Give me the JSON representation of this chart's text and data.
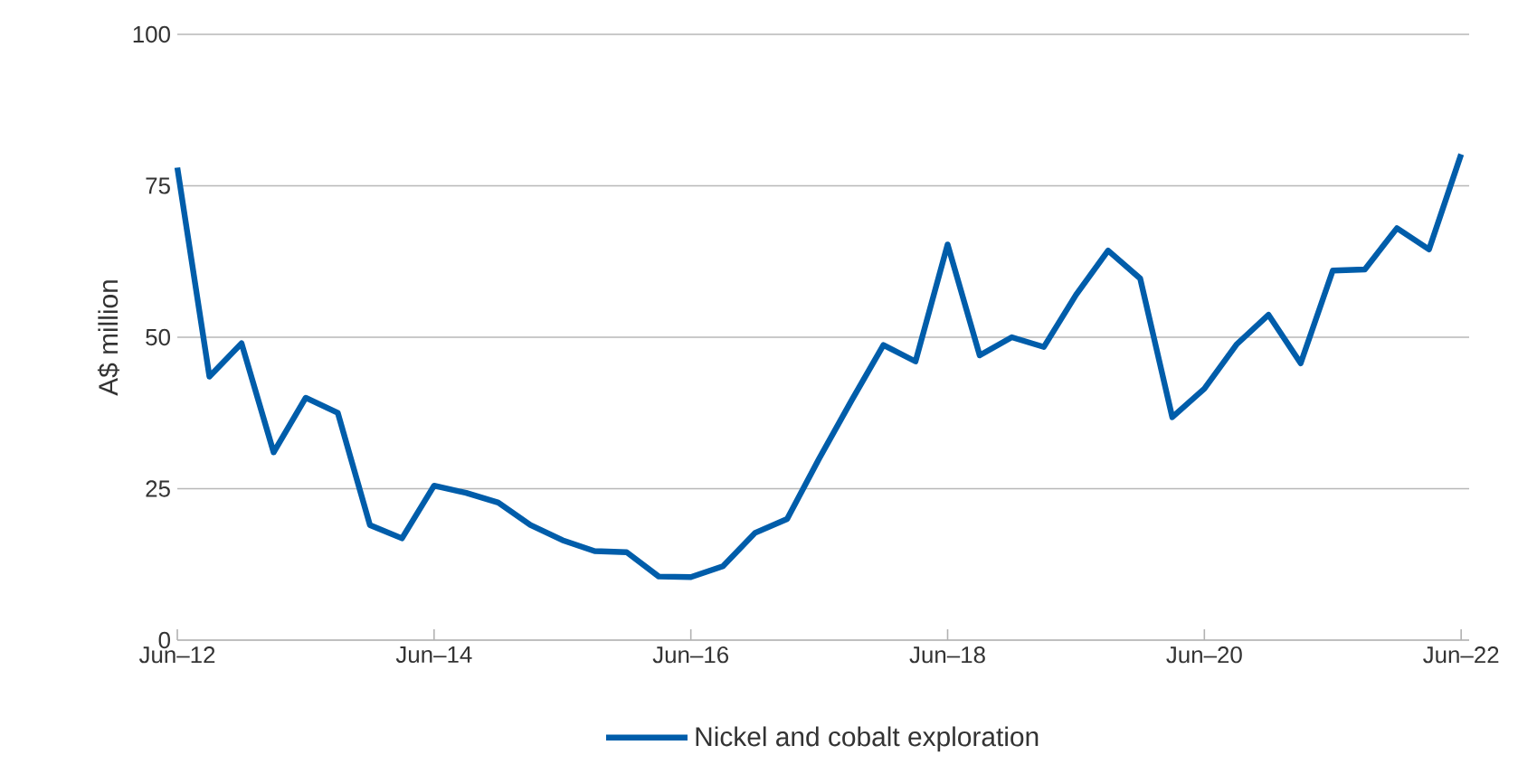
{
  "chart_data": {
    "type": "line",
    "ylabel": "A$ million",
    "categories": [
      "Jun–12",
      null,
      null,
      null,
      null,
      null,
      null,
      null,
      "Jun–14",
      null,
      null,
      null,
      null,
      null,
      null,
      null,
      "Jun–16",
      null,
      null,
      null,
      null,
      null,
      null,
      null,
      "Jun–18",
      null,
      null,
      null,
      null,
      null,
      null,
      null,
      "Jun–20",
      null,
      null,
      null,
      null,
      null,
      null,
      null,
      "Jun–22"
    ],
    "series": [
      {
        "name": "Nickel and cobalt exploration",
        "color": "#005daa",
        "values": [
          78,
          43.5,
          49,
          31,
          40,
          37.5,
          19,
          16.8,
          25.5,
          24.3,
          22.7,
          19,
          16.5,
          14.7,
          14.5,
          10.5,
          10.4,
          12.2,
          17.7,
          20,
          30,
          39.5,
          48.7,
          46,
          65.3,
          47,
          50,
          48.4,
          57,
          64.3,
          59.7,
          36.8,
          41.5,
          48.8,
          53.7,
          45.7,
          61,
          61.2,
          68,
          64.5,
          80.2
        ]
      }
    ],
    "ylim": [
      0,
      100
    ],
    "yticks": [
      0,
      25,
      50,
      75,
      100
    ],
    "grid": "y",
    "legend": "bottom",
    "line_style": "solid",
    "marker": "none"
  }
}
